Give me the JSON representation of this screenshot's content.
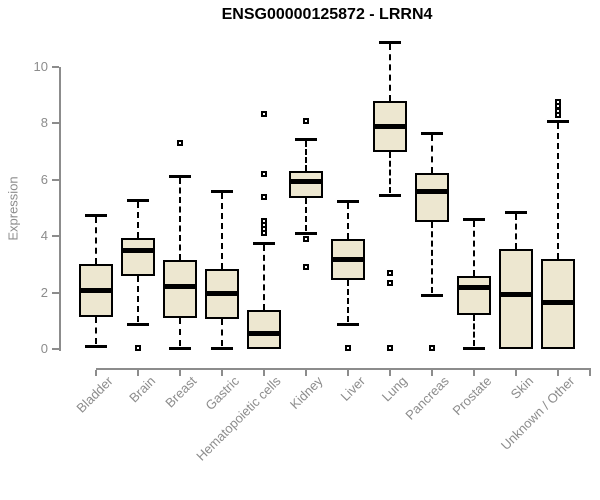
{
  "title": "ENSG00000125872 - LRRN4",
  "chart_data": {
    "type": "boxplot",
    "title": "ENSG00000125872 - LRRN4",
    "xlabel": "",
    "ylabel": "Expression",
    "ylim": [
      0,
      10.9
    ],
    "yticks": [
      0,
      2,
      4,
      6,
      8,
      10
    ],
    "grid": false,
    "legend": false,
    "categories": [
      "Bladder",
      "Brain",
      "Breast",
      "Gastric",
      "Hematopoietic cells",
      "Kidney",
      "Liver",
      "Lung",
      "Pancreas",
      "Prostate",
      "Skin",
      "Unknown / Other"
    ],
    "series": [
      {
        "name": "Bladder",
        "whisker_low": 0.1,
        "q1": 1.15,
        "median": 2.1,
        "q3": 3.0,
        "whisker_high": 4.75,
        "outliers": []
      },
      {
        "name": "Brain",
        "whisker_low": 0.9,
        "q1": 2.6,
        "median": 3.5,
        "q3": 3.95,
        "whisker_high": 5.3,
        "outliers": [
          0.05
        ]
      },
      {
        "name": "Breast",
        "whisker_low": 0.05,
        "q1": 1.1,
        "median": 2.25,
        "q3": 3.15,
        "whisker_high": 6.15,
        "outliers": [
          7.3
        ]
      },
      {
        "name": "Gastric",
        "whisker_low": 0.05,
        "q1": 1.05,
        "median": 2.0,
        "q3": 2.85,
        "whisker_high": 5.6,
        "outliers": []
      },
      {
        "name": "Hematopoietic cells",
        "whisker_low": 0.0,
        "q1": 0.0,
        "median": 0.55,
        "q3": 1.4,
        "whisker_high": 3.75,
        "outliers": [
          4.1,
          4.25,
          4.4,
          4.55,
          5.4,
          6.2,
          8.35
        ]
      },
      {
        "name": "Kidney",
        "whisker_low": 4.1,
        "q1": 5.35,
        "median": 5.95,
        "q3": 6.3,
        "whisker_high": 7.45,
        "outliers": [
          2.9,
          3.9,
          8.1
        ]
      },
      {
        "name": "Liver",
        "whisker_low": 0.9,
        "q1": 2.45,
        "median": 3.2,
        "q3": 3.9,
        "whisker_high": 5.25,
        "outliers": [
          0.05
        ]
      },
      {
        "name": "Lung",
        "whisker_low": 5.45,
        "q1": 7.0,
        "median": 7.9,
        "q3": 8.8,
        "whisker_high": 10.9,
        "outliers": [
          0.05,
          2.35,
          2.7
        ]
      },
      {
        "name": "Pancreas",
        "whisker_low": 1.9,
        "q1": 4.5,
        "median": 5.6,
        "q3": 6.25,
        "whisker_high": 7.65,
        "outliers": [
          0.05
        ]
      },
      {
        "name": "Prostate",
        "whisker_low": 0.05,
        "q1": 1.2,
        "median": 2.2,
        "q3": 2.6,
        "whisker_high": 4.6,
        "outliers": []
      },
      {
        "name": "Skin",
        "whisker_low": 0.0,
        "q1": 0.0,
        "median": 1.95,
        "q3": 3.55,
        "whisker_high": 4.85,
        "outliers": []
      },
      {
        "name": "Unknown / Other",
        "whisker_low": 0.0,
        "q1": 0.0,
        "median": 1.65,
        "q3": 3.2,
        "whisker_high": 8.1,
        "outliers": [
          8.3,
          8.45,
          8.6,
          8.75
        ]
      }
    ]
  },
  "colors": {
    "box_fill": "#EDE7D0",
    "box_border": "#000000",
    "median": "#000000",
    "whisker": "#000000",
    "outlier_border": "#000000",
    "axis": "#8C8C8C",
    "tick_label": "#8C8C8C",
    "title": "#000000",
    "background": "#FFFFFF"
  }
}
